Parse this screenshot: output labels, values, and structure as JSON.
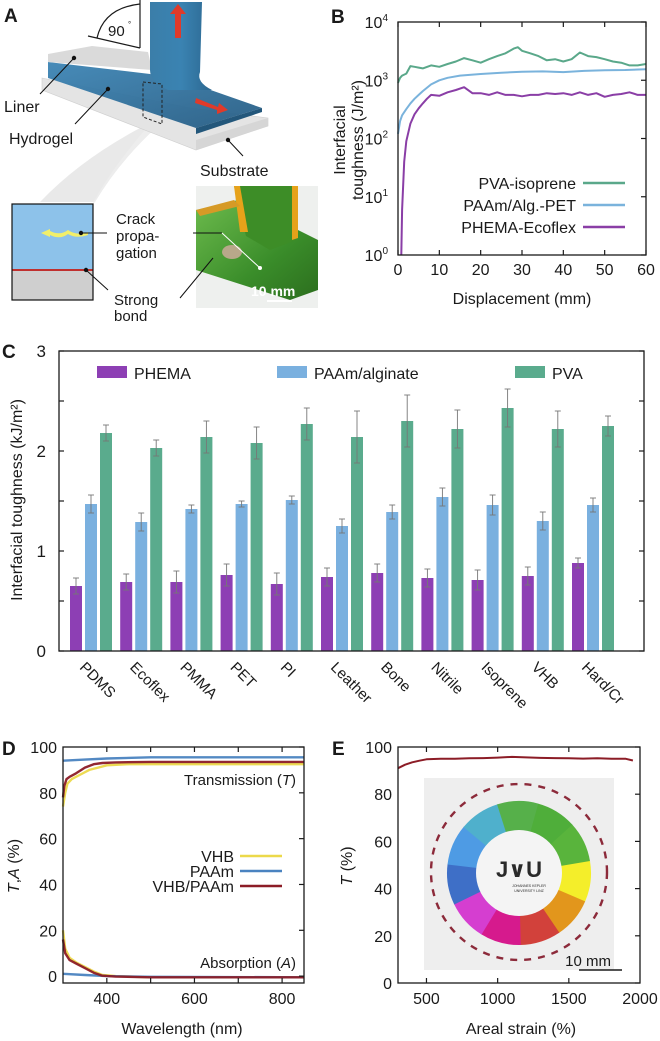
{
  "panels": {
    "A": {
      "letter": "A",
      "angle_label": "90",
      "angle_unit": "°",
      "labels": {
        "liner": "Liner",
        "hydrogel": "Hydrogel",
        "substrate": "Substrate",
        "crack_line1": "Crack",
        "crack_line2": "propa-",
        "crack_line3": "gation",
        "bond_line1": "Strong",
        "bond_line2": "bond"
      },
      "scale_bar": "10 mm",
      "colors": {
        "hydrogel": "#2f6f9a",
        "liner": "#d8d8d8",
        "substrate": "#e6e6e6",
        "arrow": "#e03a2a",
        "inset_gel": "#8dc2ea",
        "inset_substrate": "#cfcfcf",
        "bond_line": "#c0302f",
        "crack_arrow": "#f2ef6a",
        "photo_green": "#3f9a2b",
        "photo_amber": "#e6a21a"
      }
    },
    "B": {
      "letter": "B"
    },
    "C": {
      "letter": "C"
    },
    "D": {
      "letter": "D"
    },
    "E": {
      "letter": "E",
      "photo_logo": "J∨U",
      "photo_logo_sub1": "JOHANNES KEPLER",
      "photo_logo_sub2": "UNIVERSITY LINZ",
      "scale_bar": "10 mm",
      "wheel_colors": [
        "#4fae3a",
        "#59b43c",
        "#f4ee2a",
        "#e2961c",
        "#d2413b",
        "#d61a8d",
        "#d53ed0",
        "#3e6fc7",
        "#4e9be4",
        "#4fb0cc",
        "#56b04a"
      ]
    }
  },
  "chart_data": [
    {
      "panel": "B",
      "type": "line",
      "title": "",
      "xlabel": "Displacement (mm)",
      "ylabel_line1": "Interfacial",
      "ylabel_line2": "toughness (J/m²)",
      "yscale": "log",
      "xlim": [
        0,
        60
      ],
      "ylim": [
        1,
        10000
      ],
      "xticks": [
        0,
        10,
        20,
        30,
        40,
        50,
        60
      ],
      "xtick_labels": [
        "0",
        "10",
        "20",
        "30",
        "40",
        "50",
        "60"
      ],
      "yticks": [
        1,
        10,
        100,
        1000,
        10000
      ],
      "ytick_labels": [
        {
          "base": "10",
          "exp": "0"
        },
        {
          "base": "10",
          "exp": "1"
        },
        {
          "base": "10",
          "exp": "2"
        },
        {
          "base": "10",
          "exp": "3"
        },
        {
          "base": "10",
          "exp": "4"
        }
      ],
      "legend_position": "bottom-right",
      "series": [
        {
          "name": "PVA-isoprene",
          "color": "#5aa88a",
          "x": [
            0,
            0.5,
            1,
            2,
            3,
            4,
            5,
            6,
            8,
            10,
            12,
            14,
            16,
            18,
            20,
            22,
            24,
            26,
            28,
            29,
            30,
            32,
            34,
            36,
            38,
            40,
            42,
            44,
            46,
            48,
            50,
            52,
            54,
            56,
            58,
            60
          ],
          "y": [
            900,
            1100,
            1200,
            1300,
            1750,
            1700,
            1650,
            1600,
            1800,
            1700,
            1900,
            2100,
            2400,
            2200,
            2000,
            2300,
            2600,
            2900,
            3500,
            3700,
            3200,
            2900,
            2600,
            2200,
            2300,
            2100,
            2300,
            3000,
            2600,
            2500,
            2300,
            2100,
            2000,
            1800,
            1800,
            1900
          ]
        },
        {
          "name": "PAAm/Alg.-PET",
          "color": "#7ab3dc",
          "x": [
            0,
            0.5,
            1,
            2,
            3,
            4,
            5,
            6,
            8,
            10,
            12,
            15,
            20,
            25,
            30,
            35,
            40,
            45,
            50,
            55,
            60
          ],
          "y": [
            120,
            200,
            250,
            320,
            400,
            480,
            560,
            650,
            850,
            1000,
            1100,
            1200,
            1280,
            1350,
            1400,
            1420,
            1380,
            1450,
            1480,
            1500,
            1550
          ]
        },
        {
          "name": "PHEMA-Ecoflex",
          "color": "#8a3ea6",
          "x": [
            0.8,
            1,
            1.5,
            2,
            3,
            4,
            5,
            6,
            7,
            8,
            10,
            12,
            14,
            16,
            18,
            20,
            22,
            24,
            26,
            28,
            30,
            32,
            34,
            36,
            38,
            40,
            42,
            44,
            46,
            48,
            50,
            52,
            54,
            56,
            58,
            60
          ],
          "y": [
            1,
            6,
            40,
            90,
            180,
            260,
            330,
            400,
            480,
            560,
            540,
            620,
            680,
            760,
            600,
            600,
            560,
            620,
            560,
            560,
            530,
            560,
            560,
            600,
            580,
            600,
            560,
            620,
            560,
            600,
            520,
            560,
            580,
            620,
            560,
            560
          ]
        }
      ]
    },
    {
      "panel": "C",
      "type": "bar",
      "title": "",
      "xlabel": "",
      "ylabel": "Interfacial toughness (kJ/m²)",
      "ylim": [
        0,
        3
      ],
      "yticks": [
        0,
        1,
        2,
        3
      ],
      "ytick_labels": [
        "0",
        "1",
        "2",
        "3"
      ],
      "legend_position": "top",
      "categories": [
        "PDMS",
        "Ecoflex",
        "PMMA",
        "PET",
        "PI",
        "Leather",
        "Bone",
        "Nitrile",
        "Isoprene",
        "VHB",
        "Hard/Cr"
      ],
      "series": [
        {
          "name": "PHEMA",
          "color": "#8d3fb4",
          "values": [
            0.65,
            0.69,
            0.69,
            0.76,
            0.67,
            0.74,
            0.78,
            0.73,
            0.71,
            0.75,
            0.88
          ],
          "errors": [
            0.08,
            0.08,
            0.11,
            0.11,
            0.11,
            0.09,
            0.09,
            0.09,
            0.1,
            0.09,
            0.05
          ]
        },
        {
          "name": "PAAm/alginate",
          "color": "#7ab0df",
          "values": [
            1.47,
            1.29,
            1.42,
            1.47,
            1.51,
            1.25,
            1.39,
            1.54,
            1.46,
            1.3,
            1.46
          ],
          "errors": [
            0.09,
            0.09,
            0.04,
            0.03,
            0.04,
            0.07,
            0.07,
            0.09,
            0.1,
            0.09,
            0.07
          ]
        },
        {
          "name": "PVA",
          "color": "#5aab8d",
          "values": [
            2.18,
            2.03,
            2.14,
            2.08,
            2.27,
            2.14,
            2.3,
            2.22,
            2.43,
            2.22,
            2.25
          ],
          "errors": [
            0.08,
            0.08,
            0.16,
            0.16,
            0.16,
            0.26,
            0.26,
            0.19,
            0.19,
            0.18,
            0.1
          ]
        }
      ]
    },
    {
      "panel": "D",
      "type": "line",
      "title": "",
      "xlabel": "Wavelength (nm)",
      "ylabel": "T,A (%)",
      "ylabel_italic_T": "T",
      "ylabel_italic_A": "A",
      "xlim": [
        300,
        850
      ],
      "ylim": [
        -3,
        100
      ],
      "xticks": [
        400,
        600,
        800
      ],
      "xtick_labels": [
        "400",
        "600",
        "800"
      ],
      "yticks": [
        0,
        20,
        40,
        60,
        80,
        100
      ],
      "ytick_labels": [
        "0",
        "20",
        "40",
        "60",
        "80",
        "100"
      ],
      "annotations": [
        {
          "text": "Transmission (",
          "italic": "T",
          "close": ")"
        },
        {
          "text": "Absorption (",
          "italic": "A",
          "close": ")"
        }
      ],
      "legend_position": "center-right",
      "series": [
        {
          "name": "VHB",
          "color": "#ecd94a",
          "group": "T",
          "x": [
            300,
            305,
            310,
            320,
            340,
            360,
            380,
            400,
            450,
            500,
            600,
            700,
            850
          ],
          "y": [
            74,
            80,
            84,
            86,
            88,
            90,
            91,
            92,
            92.5,
            92.5,
            92.5,
            92.5,
            92.5
          ]
        },
        {
          "name": "PAAm",
          "color": "#4a83c0",
          "group": "T",
          "x": [
            300,
            350,
            400,
            500,
            600,
            700,
            850
          ],
          "y": [
            94,
            94.5,
            95,
            95.5,
            95.5,
            95.5,
            95.5
          ]
        },
        {
          "name": "VHB/PAAm",
          "color": "#8c1c26",
          "group": "T",
          "x": [
            300,
            303,
            308,
            315,
            330,
            350,
            370,
            390,
            420,
            500,
            600,
            700,
            850
          ],
          "y": [
            78,
            83,
            86,
            87,
            88.5,
            91,
            92.5,
            93,
            93.3,
            93.5,
            93.5,
            93.5,
            93.5
          ]
        },
        {
          "name": "VHB-A",
          "color": "#ecd94a",
          "group": "A",
          "x": [
            300,
            305,
            315,
            330,
            350,
            370,
            390,
            420,
            500,
            850
          ],
          "y": [
            20,
            12,
            8,
            6,
            4,
            2,
            0.5,
            0,
            -0.5,
            -0.5
          ]
        },
        {
          "name": "PAAm-A",
          "color": "#4a83c0",
          "group": "A",
          "x": [
            300,
            350,
            400,
            500,
            850
          ],
          "y": [
            1,
            0.5,
            0,
            -0.3,
            -0.5
          ]
        },
        {
          "name": "VHB/PAAm-A",
          "color": "#8c1c26",
          "group": "A",
          "x": [
            300,
            305,
            315,
            330,
            350,
            370,
            390,
            420,
            500,
            850
          ],
          "y": [
            16,
            10,
            7,
            5.5,
            3.5,
            1.5,
            0.2,
            -0.2,
            -0.5,
            -0.5
          ]
        }
      ],
      "legend": [
        "VHB",
        "PAAm",
        "VHB/PAAm"
      ]
    },
    {
      "panel": "E",
      "type": "line",
      "title": "",
      "xlabel": "Areal strain (%)",
      "ylabel": "T (%)",
      "ylabel_italic": "T",
      "ylabel_rest": " (%)",
      "xlim": [
        300,
        2000
      ],
      "ylim": [
        0,
        100
      ],
      "xticks": [
        500,
        1000,
        1500,
        2000
      ],
      "xtick_labels": [
        "500",
        "1000",
        "1500",
        "2000"
      ],
      "yticks": [
        0,
        20,
        40,
        60,
        80,
        100
      ],
      "ytick_labels": [
        "0",
        "20",
        "40",
        "60",
        "80",
        "100"
      ],
      "series": [
        {
          "name": "VHB/PAAm",
          "color": "#8c1c26",
          "x": [
            300,
            350,
            400,
            450,
            500,
            600,
            700,
            800,
            900,
            1000,
            1100,
            1200,
            1300,
            1400,
            1500,
            1600,
            1700,
            1800,
            1900,
            1950
          ],
          "y": [
            91,
            92.5,
            93.5,
            94.2,
            94.8,
            95,
            95,
            95.2,
            95.3,
            95.5,
            95.8,
            95.6,
            95.4,
            95.3,
            95.2,
            95.1,
            95.2,
            95,
            95,
            94.3
          ]
        }
      ]
    }
  ]
}
